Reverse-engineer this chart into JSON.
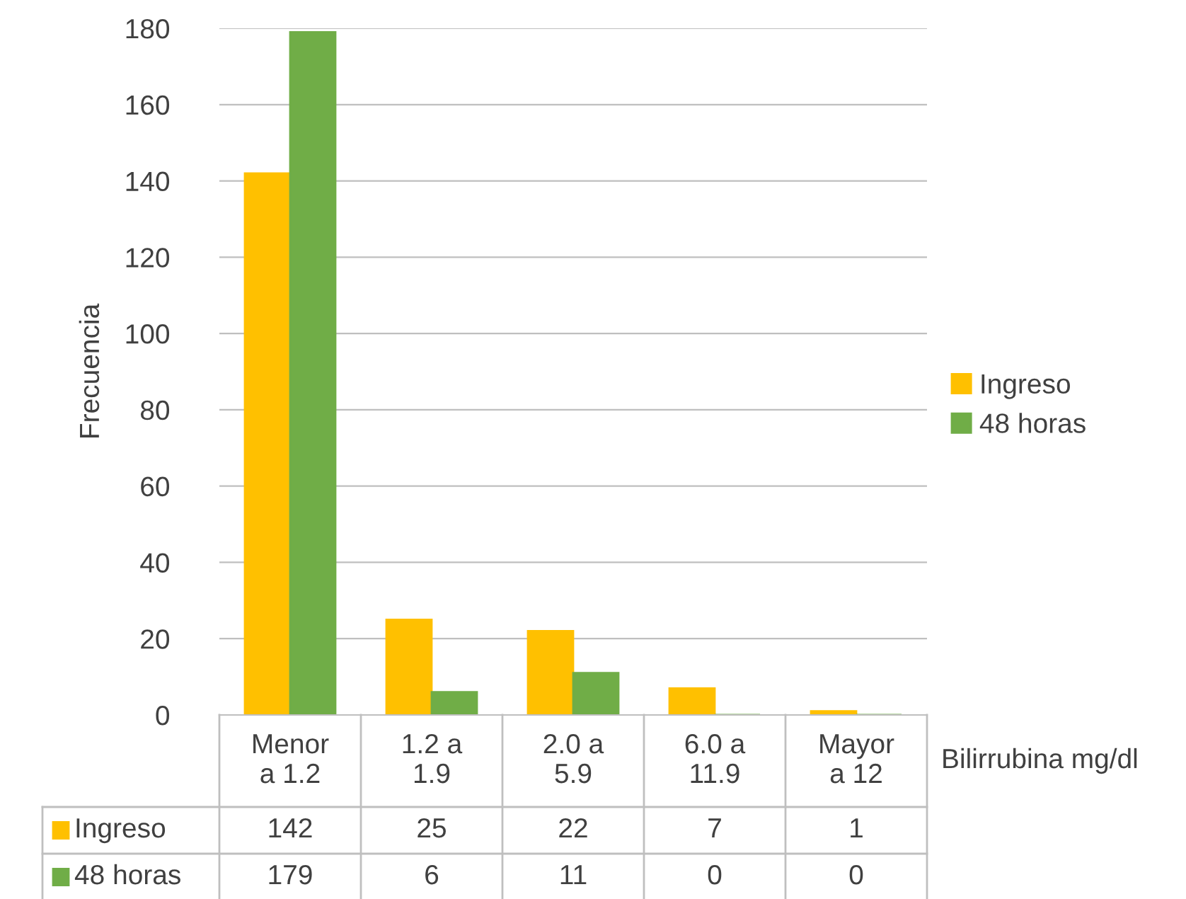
{
  "chart_data": {
    "type": "bar",
    "xlabel": "Bilirrubina mg/dl",
    "ylabel": "Frecuencia",
    "categories": [
      "Menor\na 1.2",
      "1.2 a\n1.9",
      "2.0 a\n5.9",
      "6.0 a\n11.9",
      "Mayor\na 12"
    ],
    "series": [
      {
        "name": "Ingreso",
        "color": "#ffc000",
        "values": [
          142,
          25,
          22,
          7,
          1
        ]
      },
      {
        "name": "48 horas",
        "color": "#70ad47",
        "values": [
          179,
          6,
          11,
          0,
          0
        ]
      }
    ],
    "ylim": [
      0,
      180
    ],
    "yticks": [
      0,
      20,
      40,
      60,
      80,
      100,
      120,
      140,
      160,
      180
    ],
    "grid": "y",
    "legend": "right",
    "data_labels": true
  }
}
